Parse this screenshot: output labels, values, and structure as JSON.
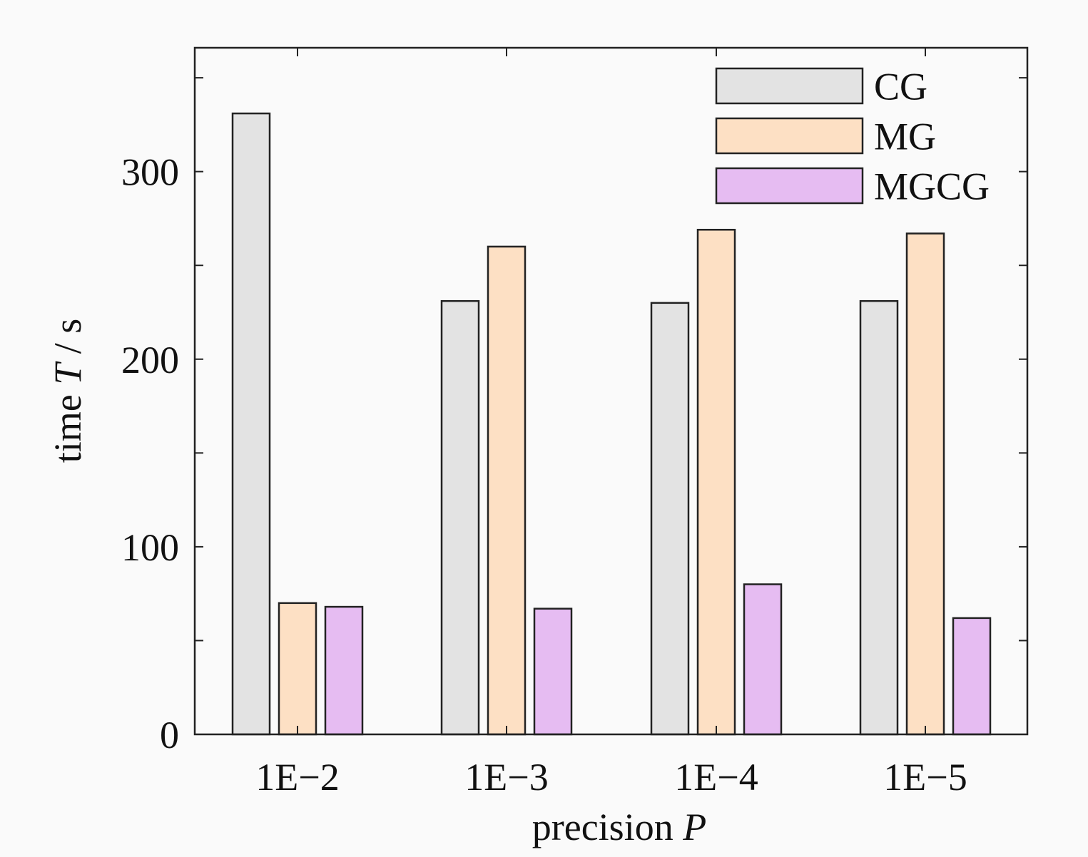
{
  "chart_data": {
    "type": "bar",
    "title": "",
    "xlabel": {
      "main": "precision ",
      "symbol": "P"
    },
    "ylabel": {
      "main": "time ",
      "symbol": "T",
      "unit": " / s"
    },
    "categories": [
      "1E−2",
      "1E−3",
      "1E−4",
      "1E−5"
    ],
    "series": [
      {
        "name": "CG",
        "color": "#e3e3e3",
        "values": [
          331,
          231,
          230,
          231
        ]
      },
      {
        "name": "MG",
        "color": "#fde0c4",
        "values": [
          70,
          260,
          269,
          267
        ]
      },
      {
        "name": "MGCG",
        "color": "#e6bcf2",
        "values": [
          68,
          67,
          80,
          62
        ]
      }
    ],
    "ylim": [
      0,
      366
    ],
    "yticks": [
      0,
      50,
      100,
      150,
      200,
      250,
      300,
      350
    ],
    "ytick_labels": {
      "0": "0",
      "100": "100",
      "200": "200",
      "300": "300"
    },
    "grid": false,
    "legend_position": "top-right"
  }
}
